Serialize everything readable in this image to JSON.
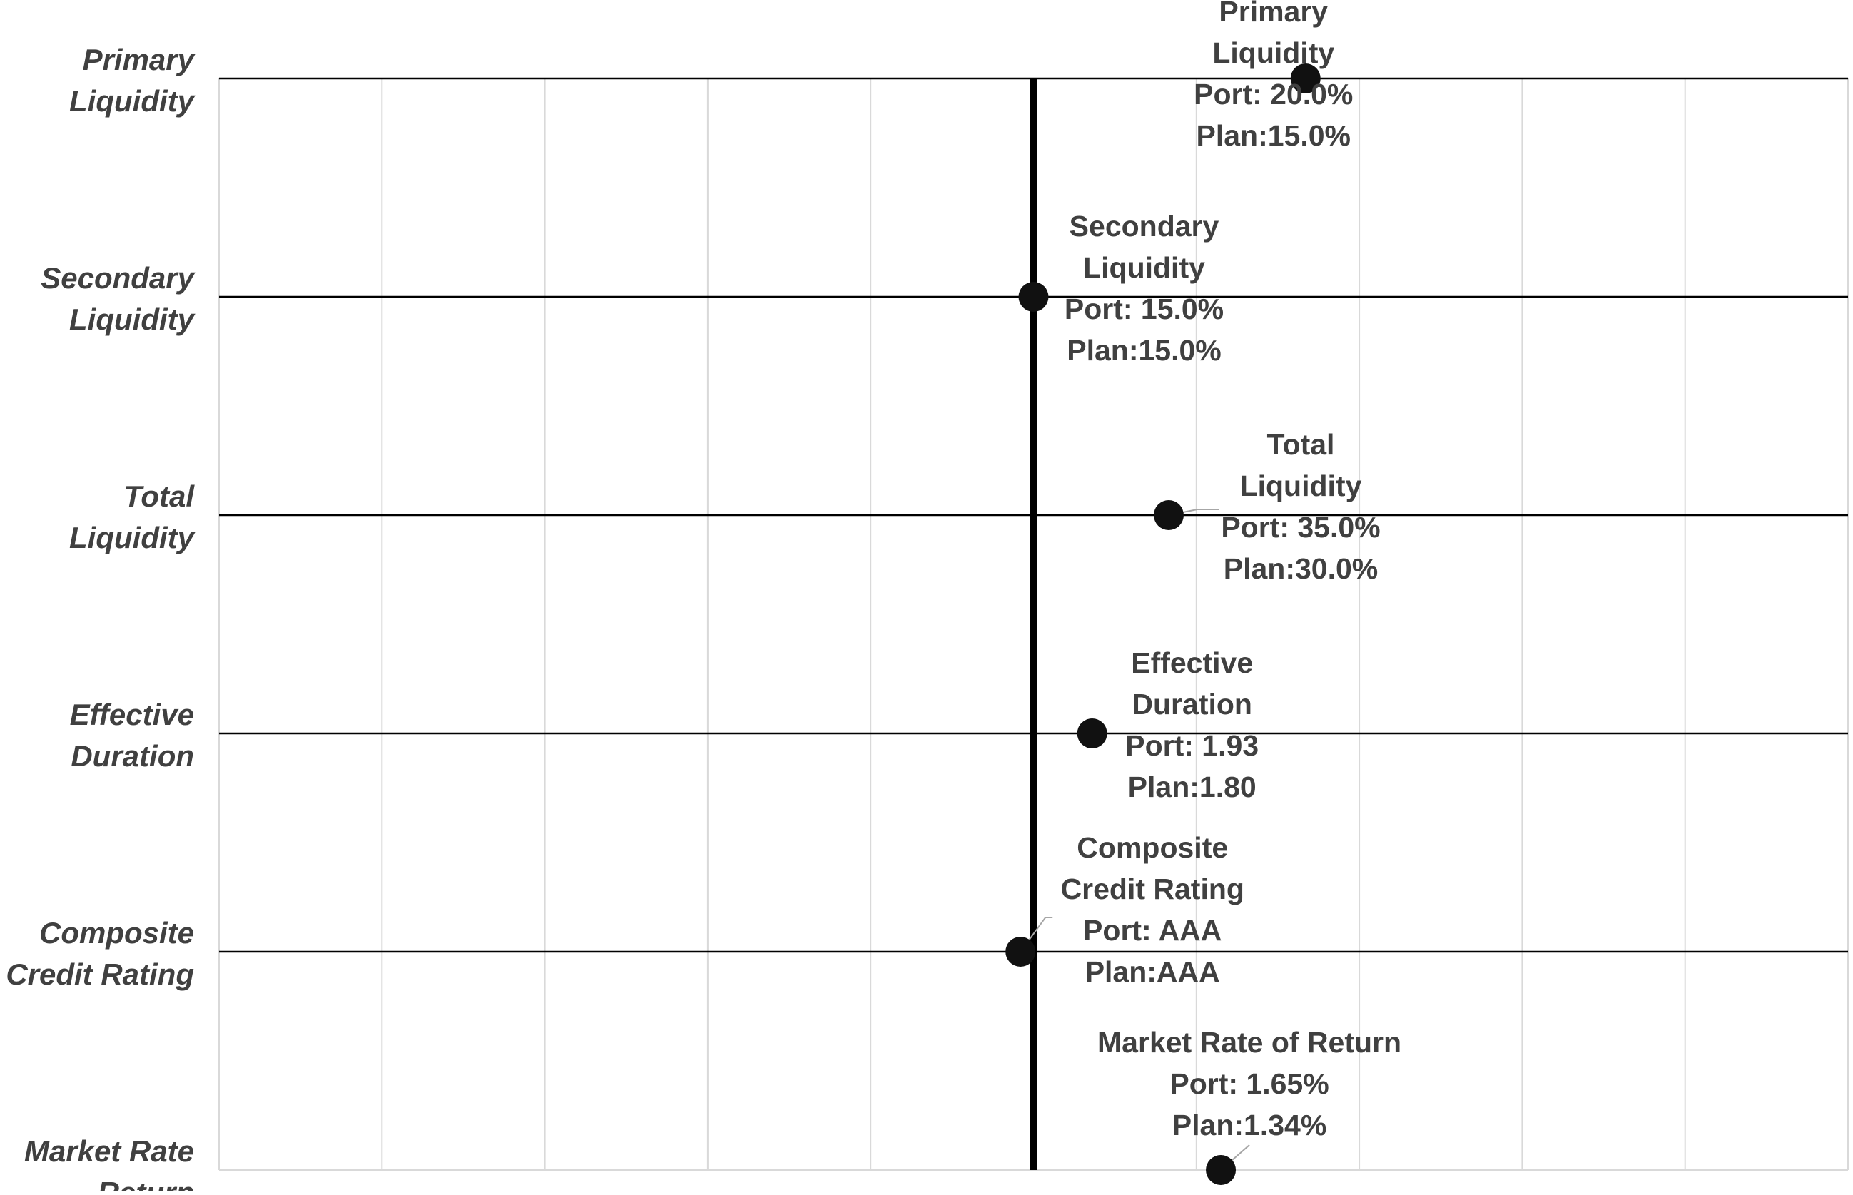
{
  "chart_data": {
    "type": "scatter",
    "title": "",
    "xlabel": "",
    "ylabel": "",
    "grid": true,
    "legend": "none",
    "x_gridline_count": 10,
    "center_marker": true,
    "categories": [
      "Primary Liquidity",
      "Secondary Liquidity",
      "Total Liquidity",
      "Effective Duration",
      "Composite Credit Rating",
      "Market Rate Return"
    ],
    "category_labels": [
      [
        "Primary",
        "Liquidity"
      ],
      [
        "Secondary",
        "Liquidity"
      ],
      [
        "Total",
        "Liquidity"
      ],
      [
        "Effective",
        "Duration"
      ],
      [
        "Composite",
        "Credit Rating"
      ],
      [
        "Market Rate",
        "Return"
      ]
    ],
    "points": [
      {
        "category": "Primary Liquidity",
        "x": 1.67,
        "label_lines": [
          "Primary",
          "Liquidity",
          "Port: 20.0%",
          "Plan:15.0%"
        ],
        "port": "20.0%",
        "plan": "15.0%"
      },
      {
        "category": "Secondary Liquidity",
        "x": 0.0,
        "label_lines": [
          "Secondary",
          "Liquidity",
          "Port: 15.0%",
          "Plan:15.0%"
        ],
        "port": "15.0%",
        "plan": "15.0%"
      },
      {
        "category": "Total Liquidity",
        "x": 0.83,
        "label_lines": [
          "Total",
          "Liquidity",
          "Port: 35.0%",
          "Plan:30.0%"
        ],
        "port": "35.0%",
        "plan": "30.0%"
      },
      {
        "category": "Effective Duration",
        "x": 0.36,
        "label_lines": [
          "Effective",
          "Duration",
          "Port: 1.93",
          "Plan:1.80"
        ],
        "port": "1.93",
        "plan": "1.80"
      },
      {
        "category": "Composite Credit Rating",
        "x": -0.08,
        "label_lines": [
          "Composite",
          "Credit Rating",
          "Port: AAA",
          "Plan:AAA"
        ],
        "port": "AAA",
        "plan": "AAA"
      },
      {
        "category": "Market Rate Return",
        "x": 1.15,
        "label_lines": [
          "Market Rate of Return",
          "Port: 1.65%",
          "Plan:1.34%"
        ],
        "port": "1.65%",
        "plan": "1.34%"
      }
    ],
    "xlim": [
      -5,
      5
    ],
    "colors": {
      "marker": "#111111",
      "center_line": "#000000",
      "row_line": "#000000",
      "gridline": "#d9d9d9",
      "text": "#404040",
      "leader": "#a6a6a6"
    }
  }
}
